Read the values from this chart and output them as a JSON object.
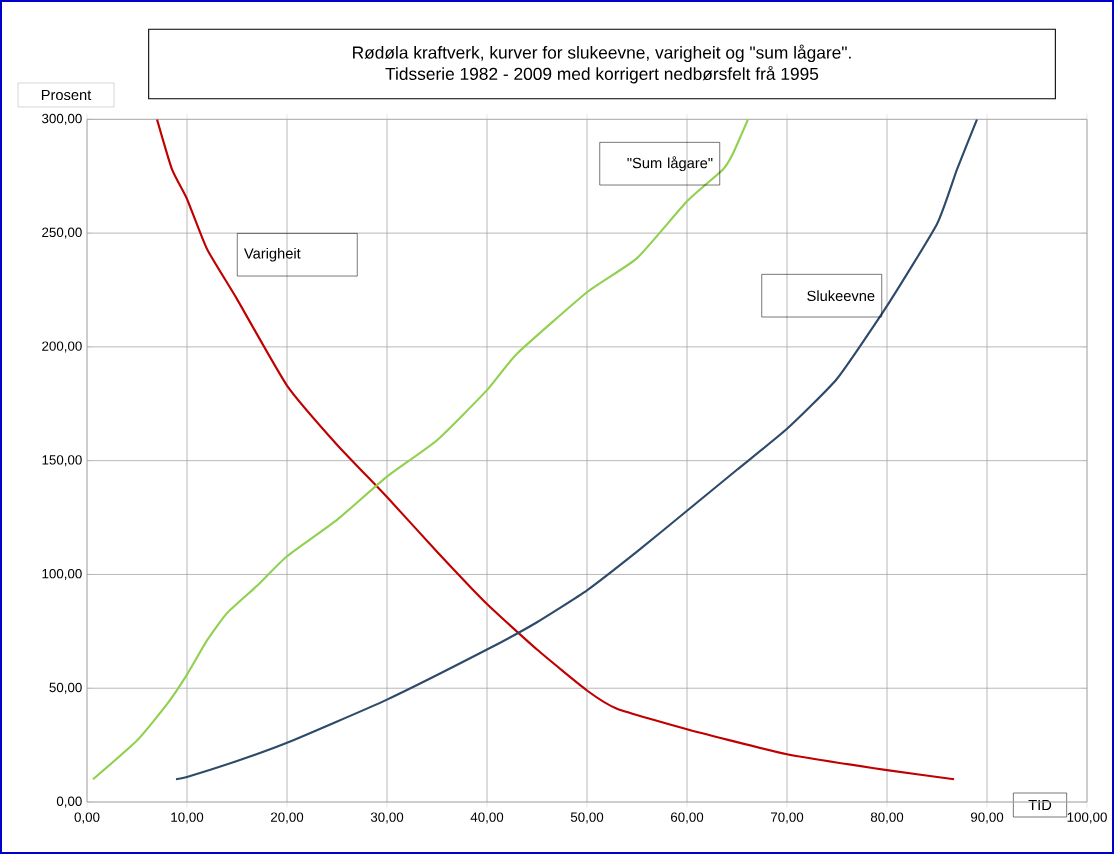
{
  "chart_data": {
    "type": "line",
    "title": "Rødøla kraftverk, kurver for slukeevne, varigheit og \"sum lågare\".",
    "subtitle": "Tidsserie 1982 - 2009 med korrigert nedbørsfelt frå 1995",
    "xlabel": "TID",
    "ylabel": "Prosent",
    "xlim": [
      0,
      100
    ],
    "ylim": [
      0,
      300
    ],
    "xticks": [
      {
        "value": 0,
        "label": "0,00"
      },
      {
        "value": 10,
        "label": "10,00"
      },
      {
        "value": 20,
        "label": "20,00"
      },
      {
        "value": 30,
        "label": "30,00"
      },
      {
        "value": 40,
        "label": "40,00"
      },
      {
        "value": 50,
        "label": "50,00"
      },
      {
        "value": 60,
        "label": "60,00"
      },
      {
        "value": 70,
        "label": "70,00"
      },
      {
        "value": 80,
        "label": "80,00"
      },
      {
        "value": 90,
        "label": "90,00"
      },
      {
        "value": 100,
        "label": "100,00"
      }
    ],
    "yticks": [
      {
        "value": 0,
        "label": "0,00"
      },
      {
        "value": 50,
        "label": "50,00"
      },
      {
        "value": 100,
        "label": "100,00"
      },
      {
        "value": 150,
        "label": "150,00"
      },
      {
        "value": 200,
        "label": "200,00"
      },
      {
        "value": 250,
        "label": "250,00"
      },
      {
        "value": 300,
        "label": "300,00"
      }
    ],
    "grid": true,
    "legend": false,
    "marker": "none",
    "line_style": "solid",
    "series": [
      {
        "name": "Varigheit",
        "color": "#c00000",
        "x": [
          7.0,
          8.5,
          10,
          12,
          15,
          20,
          25,
          30,
          35,
          40,
          45,
          50,
          53,
          60,
          70,
          80,
          86.7
        ],
        "values": [
          300,
          278,
          265,
          243,
          221,
          183,
          157,
          134,
          110,
          87,
          67,
          49,
          41,
          32,
          21,
          14,
          10
        ]
      },
      {
        "name": "\"Sum lågare\"",
        "color": "#92d050",
        "x": [
          0.6,
          5,
          8,
          10,
          12,
          14,
          17,
          20,
          25,
          30,
          35,
          40,
          43,
          50,
          55,
          60,
          63.6,
          64.6,
          66.1
        ],
        "values": [
          10,
          27,
          43,
          56,
          71,
          83,
          95,
          108,
          124,
          143,
          159,
          181,
          197,
          224,
          239,
          264,
          278,
          285,
          300
        ]
      },
      {
        "name": "Slukeevne",
        "color": "#2e4a6b",
        "x": [
          8.9,
          10,
          15,
          20,
          30,
          40,
          45,
          50,
          55,
          60,
          65,
          70,
          75,
          80,
          85,
          87,
          89
        ],
        "values": [
          10,
          11,
          18,
          26,
          45,
          67,
          79,
          93,
          110,
          128,
          146,
          164,
          186,
          218,
          254,
          278,
          300
        ]
      }
    ]
  }
}
